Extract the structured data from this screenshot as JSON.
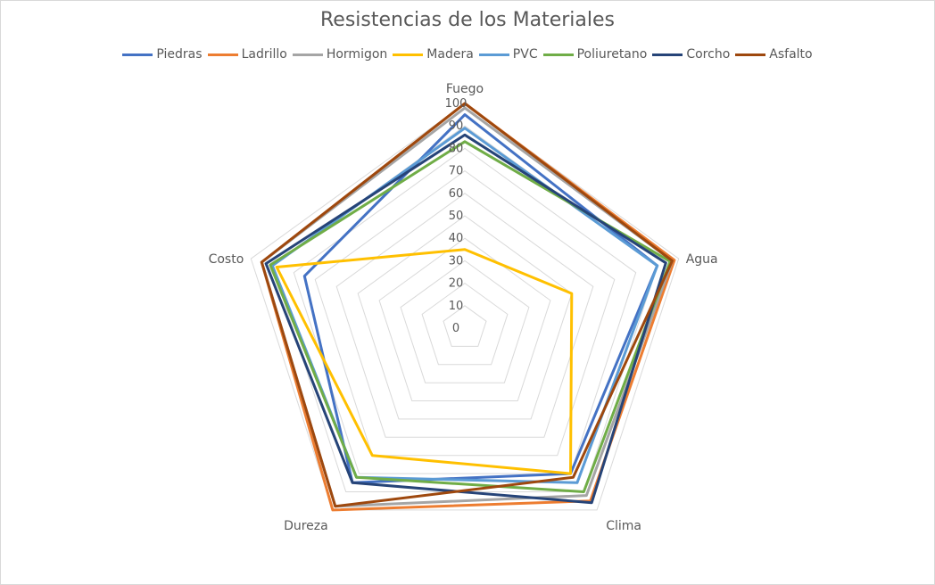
{
  "chart_data": {
    "type": "radar",
    "title": "Resistencias de los Materiales",
    "categories": [
      "Fuego",
      "Agua",
      "Clima",
      "Dureza",
      "Costo"
    ],
    "rlim": [
      0,
      100
    ],
    "ticks": [
      "0",
      "10",
      "20",
      "30",
      "40",
      "50",
      "60",
      "70",
      "80",
      "90",
      "100"
    ],
    "grid": true,
    "legend_position": "top",
    "series": [
      {
        "name": "Piedras",
        "color": "#4472C4",
        "values": [
          95,
          90,
          80,
          85,
          75
        ]
      },
      {
        "name": "Ladrillo",
        "color": "#ED7D31",
        "values": [
          100,
          98,
          95,
          100,
          95
        ]
      },
      {
        "name": "Hormigon",
        "color": "#A5A5A5",
        "values": [
          98,
          97,
          92,
          98,
          95
        ]
      },
      {
        "name": "Madera",
        "color": "#FFC000",
        "values": [
          35,
          50,
          80,
          70,
          88
        ]
      },
      {
        "name": "PVC",
        "color": "#5B9BD5",
        "values": [
          89,
          90,
          85,
          82,
          90
        ]
      },
      {
        "name": "Poliuretano",
        "color": "#70AD47",
        "values": [
          83,
          96,
          90,
          82,
          91
        ]
      },
      {
        "name": "Corcho",
        "color": "#264478",
        "values": [
          86,
          94,
          96,
          85,
          93
        ]
      },
      {
        "name": "Asfalto",
        "color": "#9E480E",
        "values": [
          100,
          97,
          82,
          98,
          95
        ]
      }
    ]
  }
}
